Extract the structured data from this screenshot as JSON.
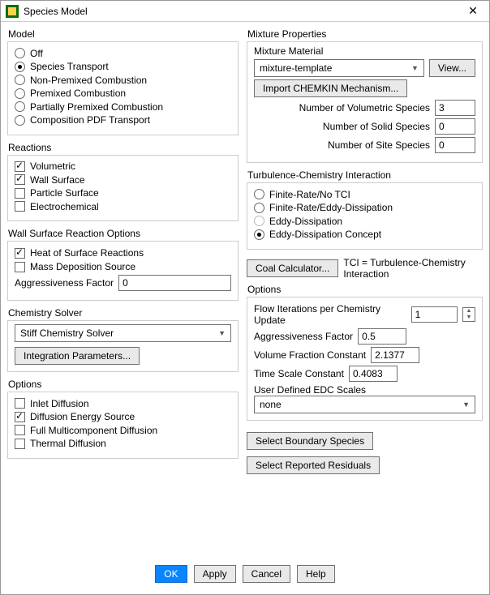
{
  "window": {
    "title": "Species Model"
  },
  "left": {
    "model": {
      "label": "Model",
      "options": [
        {
          "label": "Off",
          "on": false
        },
        {
          "label": "Species Transport",
          "on": true
        },
        {
          "label": "Non-Premixed Combustion",
          "on": false
        },
        {
          "label": "Premixed Combustion",
          "on": false
        },
        {
          "label": "Partially Premixed Combustion",
          "on": false
        },
        {
          "label": "Composition PDF Transport",
          "on": false
        }
      ]
    },
    "reactions": {
      "label": "Reactions",
      "items": [
        {
          "label": "Volumetric",
          "on": true
        },
        {
          "label": "Wall Surface",
          "on": true
        },
        {
          "label": "Particle Surface",
          "on": false
        },
        {
          "label": "Electrochemical",
          "on": false
        }
      ]
    },
    "wall": {
      "label": "Wall Surface Reaction Options",
      "items": [
        {
          "label": "Heat of Surface Reactions",
          "on": true
        },
        {
          "label": "Mass Deposition Source",
          "on": false
        }
      ],
      "aggr_label": "Aggressiveness Factor",
      "aggr_value": "0"
    },
    "solver": {
      "label": "Chemistry Solver",
      "value": "Stiff Chemistry Solver",
      "btn": "Integration Parameters..."
    },
    "options": {
      "label": "Options",
      "items": [
        {
          "label": "Inlet Diffusion",
          "on": false
        },
        {
          "label": "Diffusion Energy Source",
          "on": true
        },
        {
          "label": "Full Multicomponent Diffusion",
          "on": false
        },
        {
          "label": "Thermal Diffusion",
          "on": false
        }
      ]
    }
  },
  "right": {
    "mix": {
      "label": "Mixture Properties",
      "mat_label": "Mixture Material",
      "mat_value": "mixture-template",
      "view_btn": "View...",
      "import_btn": "Import CHEMKIN Mechanism...",
      "rows": [
        {
          "label": "Number of Volumetric Species",
          "value": "3"
        },
        {
          "label": "Number of Solid Species",
          "value": "0"
        },
        {
          "label": "Number of Site Species",
          "value": "0"
        }
      ]
    },
    "tci": {
      "label": "Turbulence-Chemistry Interaction",
      "options": [
        {
          "label": "Finite-Rate/No TCI",
          "on": false,
          "dis": false
        },
        {
          "label": "Finite-Rate/Eddy-Dissipation",
          "on": false,
          "dis": false
        },
        {
          "label": "Eddy-Dissipation",
          "on": false,
          "dis": true
        },
        {
          "label": "Eddy-Dissipation Concept",
          "on": true,
          "dis": false
        }
      ]
    },
    "coal_btn": "Coal Calculator...",
    "tci_note": "TCI = Turbulence-Chemistry Interaction",
    "edc": {
      "label": "Options",
      "rows": [
        {
          "label": "Flow Iterations per Chemistry Update",
          "value": "1",
          "spin": true
        },
        {
          "label": "Aggressiveness Factor",
          "value": "0.5"
        },
        {
          "label": "Volume Fraction Constant",
          "value": "2.1377"
        },
        {
          "label": "Time Scale Constant",
          "value": "0.4083"
        }
      ],
      "udedc_label": "User Defined EDC Scales",
      "udedc_value": "none"
    },
    "sel_boundary": "Select Boundary Species",
    "sel_residuals": "Select Reported Residuals"
  },
  "footer": {
    "ok": "OK",
    "apply": "Apply",
    "cancel": "Cancel",
    "help": "Help"
  }
}
